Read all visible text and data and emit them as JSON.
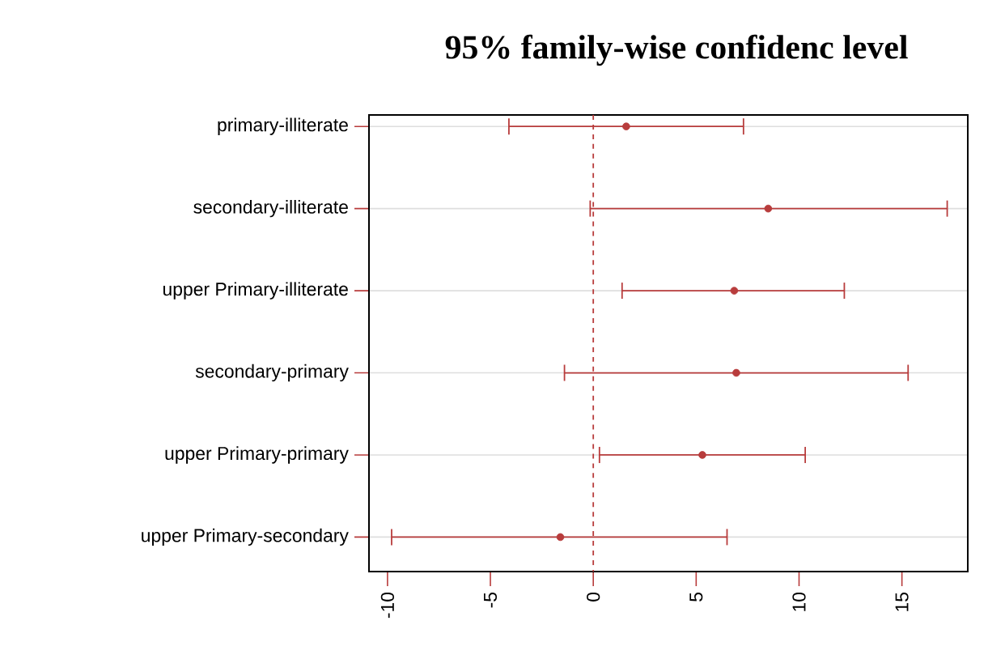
{
  "chart_data": {
    "type": "scatter",
    "orientation": "horizontal",
    "title": "95% family-wise confidenc level",
    "categories": [
      "primary-illiterate",
      "secondary-illiterate",
      "upper Primary-illiterate",
      "secondary-primary",
      "upper Primary-primary",
      "upper Primary-secondary"
    ],
    "series": [
      {
        "color": "#b83c3c",
        "values": [
          1.6,
          8.5,
          6.85,
          6.95,
          5.3,
          -1.6
        ],
        "errors": [
          [
            -4.1,
            7.3
          ],
          [
            -0.15,
            17.2
          ],
          [
            1.4,
            12.2
          ],
          [
            -1.4,
            15.3
          ],
          [
            0.3,
            10.3
          ],
          [
            -9.8,
            6.5
          ]
        ]
      }
    ],
    "xlim": [
      -10.9,
      18.2
    ],
    "xticks": [
      -10,
      -5,
      0,
      5,
      10,
      15
    ],
    "grid": "y",
    "ref_lines": [
      {
        "axis": "x",
        "value": 0,
        "color": "#b83c3c",
        "line_style": "dashed"
      }
    ]
  }
}
